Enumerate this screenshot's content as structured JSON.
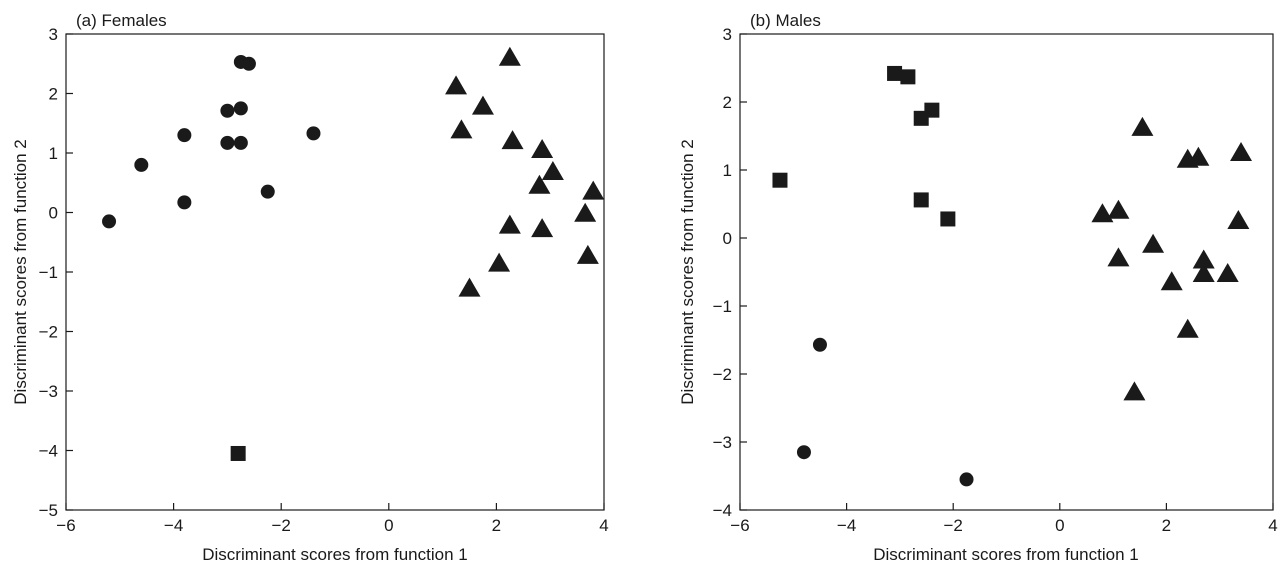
{
  "chart_data": [
    {
      "type": "scatter",
      "panel_title": "(a) Females",
      "xlabel": "Discriminant scores from function 1",
      "ylabel": "Discriminant scores from function 2",
      "xlim": [
        -6,
        4
      ],
      "ylim": [
        -5,
        3
      ],
      "x_ticks": [
        -6,
        -4,
        -2,
        0,
        2,
        4
      ],
      "y_ticks": [
        -5,
        -4,
        -3,
        -2,
        -1,
        0,
        1,
        2,
        3
      ],
      "x_tick_labels": [
        "−6",
        "−4",
        "−2",
        "0",
        "2",
        "4"
      ],
      "y_tick_labels": [
        "−5",
        "−4",
        "−3",
        "−2",
        "−1",
        "0",
        "1",
        "2",
        "3"
      ],
      "grid": false,
      "legend": "none",
      "series": [
        {
          "marker": "circle",
          "points": [
            [
              -2.75,
              2.53
            ],
            [
              -2.6,
              2.5
            ],
            [
              -3.0,
              1.71
            ],
            [
              -2.75,
              1.75
            ],
            [
              -3.0,
              1.17
            ],
            [
              -2.75,
              1.17
            ],
            [
              -3.8,
              1.3
            ],
            [
              -1.4,
              1.33
            ],
            [
              -4.6,
              0.8
            ],
            [
              -2.25,
              0.35
            ],
            [
              -3.8,
              0.17
            ],
            [
              -5.2,
              -0.15
            ]
          ]
        },
        {
          "marker": "square",
          "points": [
            [
              -2.8,
              -4.05
            ]
          ]
        },
        {
          "marker": "triangle",
          "points": [
            [
              2.25,
              2.6
            ],
            [
              1.25,
              2.12
            ],
            [
              1.75,
              1.78
            ],
            [
              1.35,
              1.38
            ],
            [
              2.3,
              1.2
            ],
            [
              2.85,
              1.05
            ],
            [
              3.05,
              0.68
            ],
            [
              2.8,
              0.45
            ],
            [
              3.8,
              0.35
            ],
            [
              3.65,
              -0.02
            ],
            [
              2.25,
              -0.22
            ],
            [
              2.85,
              -0.28
            ],
            [
              3.7,
              -0.73
            ],
            [
              2.05,
              -0.86
            ],
            [
              1.5,
              -1.28
            ]
          ]
        }
      ]
    },
    {
      "type": "scatter",
      "panel_title": "(b) Males",
      "xlabel": "Discriminant scores from function 1",
      "ylabel": "Discriminant scores from function 2",
      "xlim": [
        -6,
        4
      ],
      "ylim": [
        -4,
        3
      ],
      "x_ticks": [
        -6,
        -4,
        -2,
        0,
        2,
        4
      ],
      "y_ticks": [
        -4,
        -3,
        -2,
        -1,
        0,
        1,
        2,
        3
      ],
      "x_tick_labels": [
        "−6",
        "−4",
        "−2",
        "0",
        "2",
        "4"
      ],
      "y_tick_labels": [
        "−4",
        "−3",
        "−2",
        "−1",
        "0",
        "1",
        "2",
        "3"
      ],
      "grid": false,
      "legend": "none",
      "series": [
        {
          "marker": "circle",
          "points": [
            [
              -4.5,
              -1.57
            ],
            [
              -4.8,
              -3.15
            ],
            [
              -1.75,
              -3.55
            ]
          ]
        },
        {
          "marker": "square",
          "points": [
            [
              -3.1,
              2.42
            ],
            [
              -2.85,
              2.37
            ],
            [
              -2.6,
              1.76
            ],
            [
              -2.4,
              1.88
            ],
            [
              -5.25,
              0.85
            ],
            [
              -2.6,
              0.56
            ],
            [
              -2.1,
              0.28
            ]
          ]
        },
        {
          "marker": "triangle",
          "points": [
            [
              1.55,
              1.62
            ],
            [
              2.4,
              1.15
            ],
            [
              2.6,
              1.18
            ],
            [
              3.4,
              1.25
            ],
            [
              0.8,
              0.35
            ],
            [
              1.1,
              0.4
            ],
            [
              3.35,
              0.25
            ],
            [
              1.75,
              -0.1
            ],
            [
              1.1,
              -0.3
            ],
            [
              2.7,
              -0.33
            ],
            [
              2.1,
              -0.65
            ],
            [
              2.7,
              -0.53
            ],
            [
              3.15,
              -0.53
            ],
            [
              2.4,
              -1.35
            ],
            [
              1.4,
              -2.27
            ]
          ]
        }
      ]
    }
  ]
}
